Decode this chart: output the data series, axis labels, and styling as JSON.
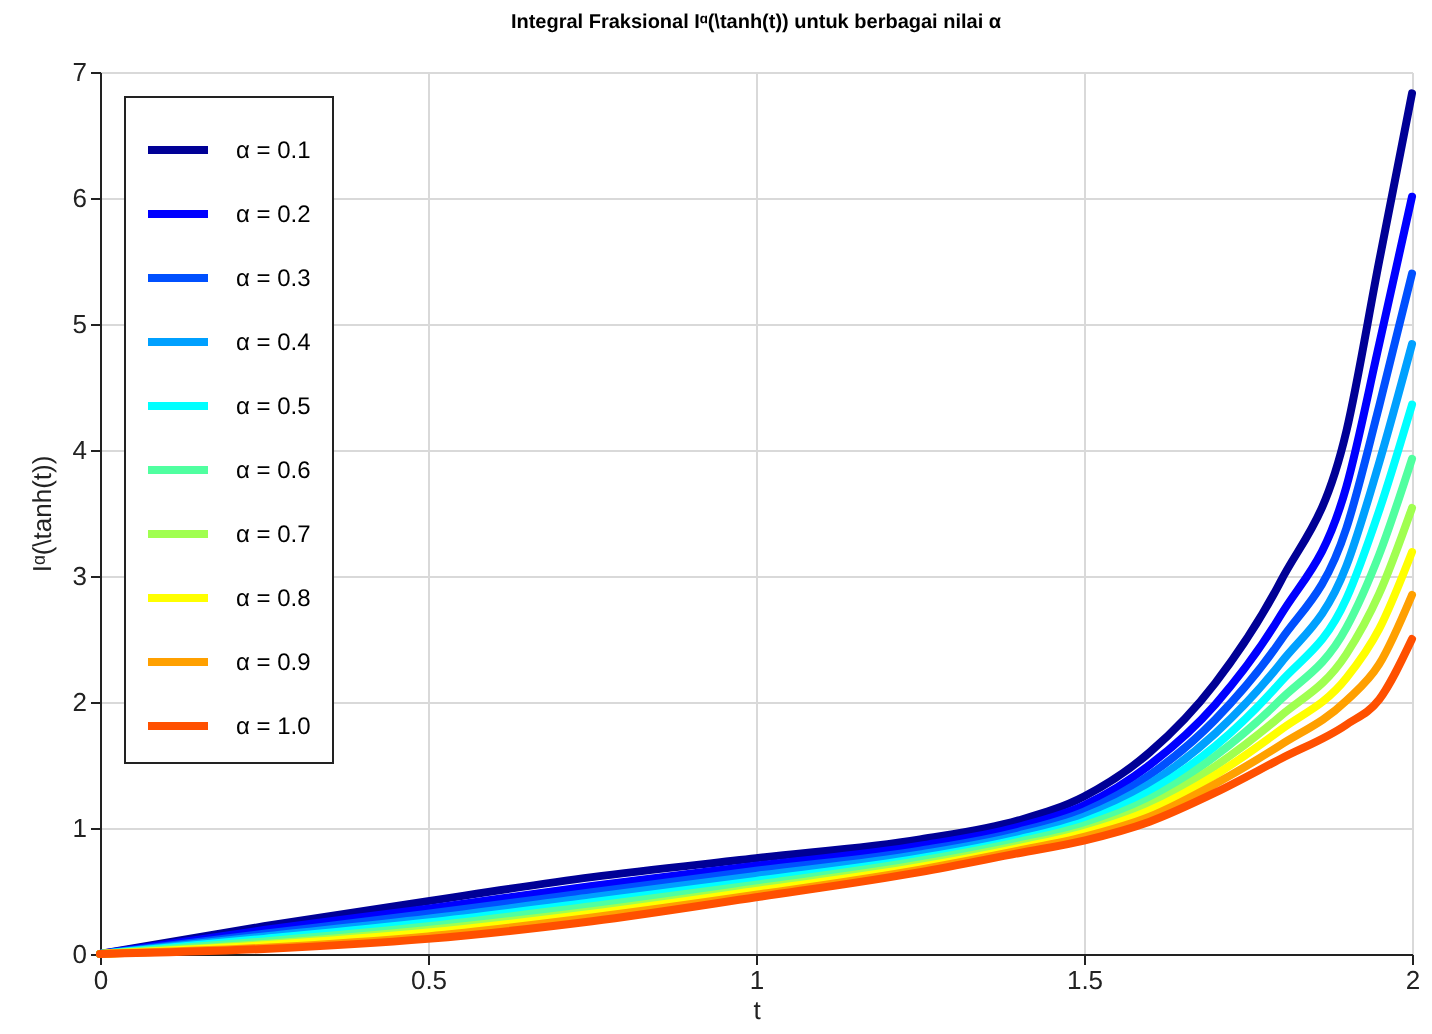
{
  "chart_data": {
    "type": "line",
    "title": "Integral Fraksional Iᵅ(\\tanh(t)) untuk berbagai nilai α",
    "xlabel": "t",
    "ylabel": "Iᵅ(\\tanh(t))",
    "x": [
      0,
      0.25,
      0.5,
      0.75,
      1,
      1.25,
      1.4,
      1.5,
      1.6,
      1.7,
      1.8,
      1.9,
      1.95,
      2
    ],
    "series": [
      {
        "name": "α = 0.1",
        "color": "#000096",
        "values": [
          0,
          0.22,
          0.42,
          0.61,
          0.76,
          0.91,
          1.06,
          1.25,
          1.6,
          2.15,
          2.96,
          4.15,
          5.5,
          6.83
        ]
      },
      {
        "name": "α = 0.2",
        "color": "#0000ff",
        "values": [
          0,
          0.19,
          0.36,
          0.54,
          0.7,
          0.86,
          1.01,
          1.18,
          1.5,
          1.98,
          2.69,
          3.71,
          4.84,
          6.01
        ]
      },
      {
        "name": "α = 0.3",
        "color": "#0050ff",
        "values": [
          0,
          0.16,
          0.32,
          0.49,
          0.66,
          0.82,
          0.97,
          1.13,
          1.42,
          1.86,
          2.49,
          3.38,
          4.35,
          5.4
        ]
      },
      {
        "name": "α = 0.4",
        "color": "#00a0ff",
        "values": [
          0,
          0.14,
          0.28,
          0.45,
          0.62,
          0.79,
          0.94,
          1.09,
          1.35,
          1.75,
          2.31,
          3.08,
          3.9,
          4.84
        ]
      },
      {
        "name": "α = 0.5",
        "color": "#00ffff",
        "values": [
          0,
          0.12,
          0.25,
          0.41,
          0.58,
          0.76,
          0.91,
          1.05,
          1.29,
          1.65,
          2.16,
          2.82,
          3.52,
          4.36
        ]
      },
      {
        "name": "α = 0.6",
        "color": "#50ffa0",
        "values": [
          0,
          0.1,
          0.22,
          0.38,
          0.55,
          0.74,
          0.89,
          1.02,
          1.23,
          1.57,
          2.02,
          2.59,
          3.17,
          3.93
        ]
      },
      {
        "name": "α = 0.7",
        "color": "#a0ff50",
        "values": [
          0,
          0.08,
          0.19,
          0.34,
          0.52,
          0.71,
          0.86,
          0.98,
          1.18,
          1.49,
          1.89,
          2.38,
          2.86,
          3.54
        ]
      },
      {
        "name": "α = 0.8",
        "color": "#ffff00",
        "values": [
          0,
          0.07,
          0.17,
          0.32,
          0.5,
          0.69,
          0.84,
          0.96,
          1.14,
          1.42,
          1.78,
          2.19,
          2.58,
          3.19
        ]
      },
      {
        "name": "α = 0.9",
        "color": "#ffa000",
        "values": [
          0,
          0.05,
          0.14,
          0.29,
          0.47,
          0.67,
          0.82,
          0.93,
          1.09,
          1.35,
          1.66,
          2.01,
          2.3,
          2.85
        ]
      },
      {
        "name": "α = 1.0",
        "color": "#ff5000",
        "values": [
          0,
          0.04,
          0.12,
          0.26,
          0.45,
          0.65,
          0.8,
          0.9,
          1.05,
          1.28,
          1.55,
          1.82,
          2.02,
          2.5
        ]
      }
    ],
    "xlim": [
      0,
      2
    ],
    "xticks": [
      0,
      0.5,
      1,
      1.5,
      2
    ],
    "ylim": [
      0,
      7
    ],
    "yticks": [
      0,
      1,
      2,
      3,
      4,
      5,
      6,
      7
    ],
    "grid": true,
    "legend": "top left",
    "marker": "none",
    "line_style": "solid"
  }
}
